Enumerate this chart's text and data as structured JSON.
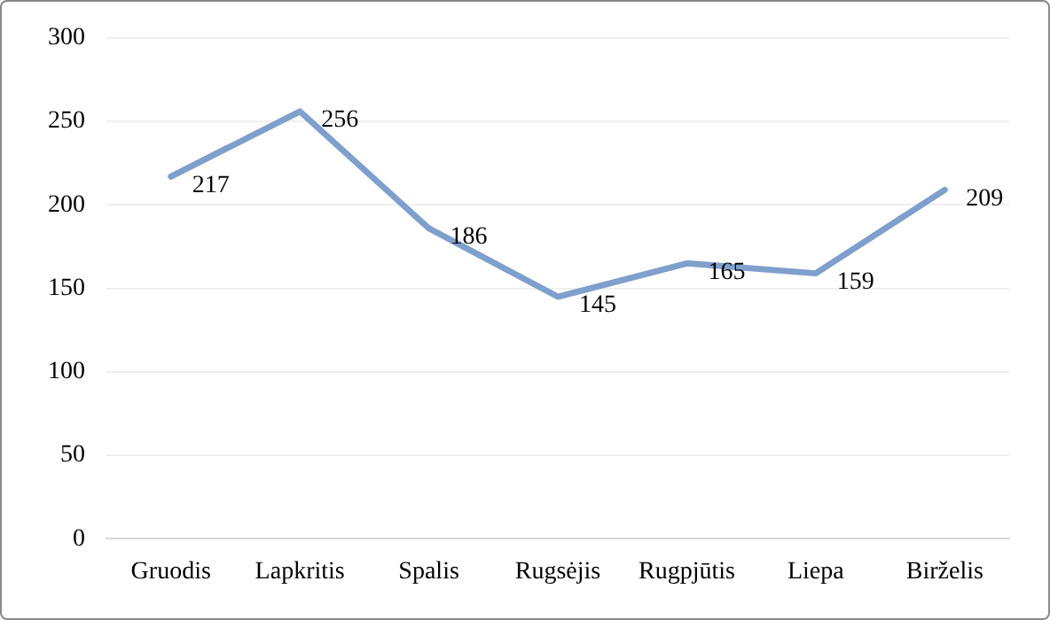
{
  "chart_data": {
    "type": "line",
    "categories": [
      "Gruodis",
      "Lapkritis",
      "Spalis",
      "Rugsėjis",
      "Rugpjūtis",
      "Liepa",
      "Birželis"
    ],
    "series": [
      {
        "color": "#7f9fcc",
        "values": [
          217,
          256,
          186,
          145,
          165,
          159,
          209
        ]
      }
    ],
    "ylim": [
      0,
      300
    ],
    "yticks": [
      0,
      50,
      100,
      150,
      200,
      250,
      300
    ],
    "grid": "y",
    "legend": false,
    "marker": "none",
    "line_style": "solid",
    "data_labels": true
  }
}
